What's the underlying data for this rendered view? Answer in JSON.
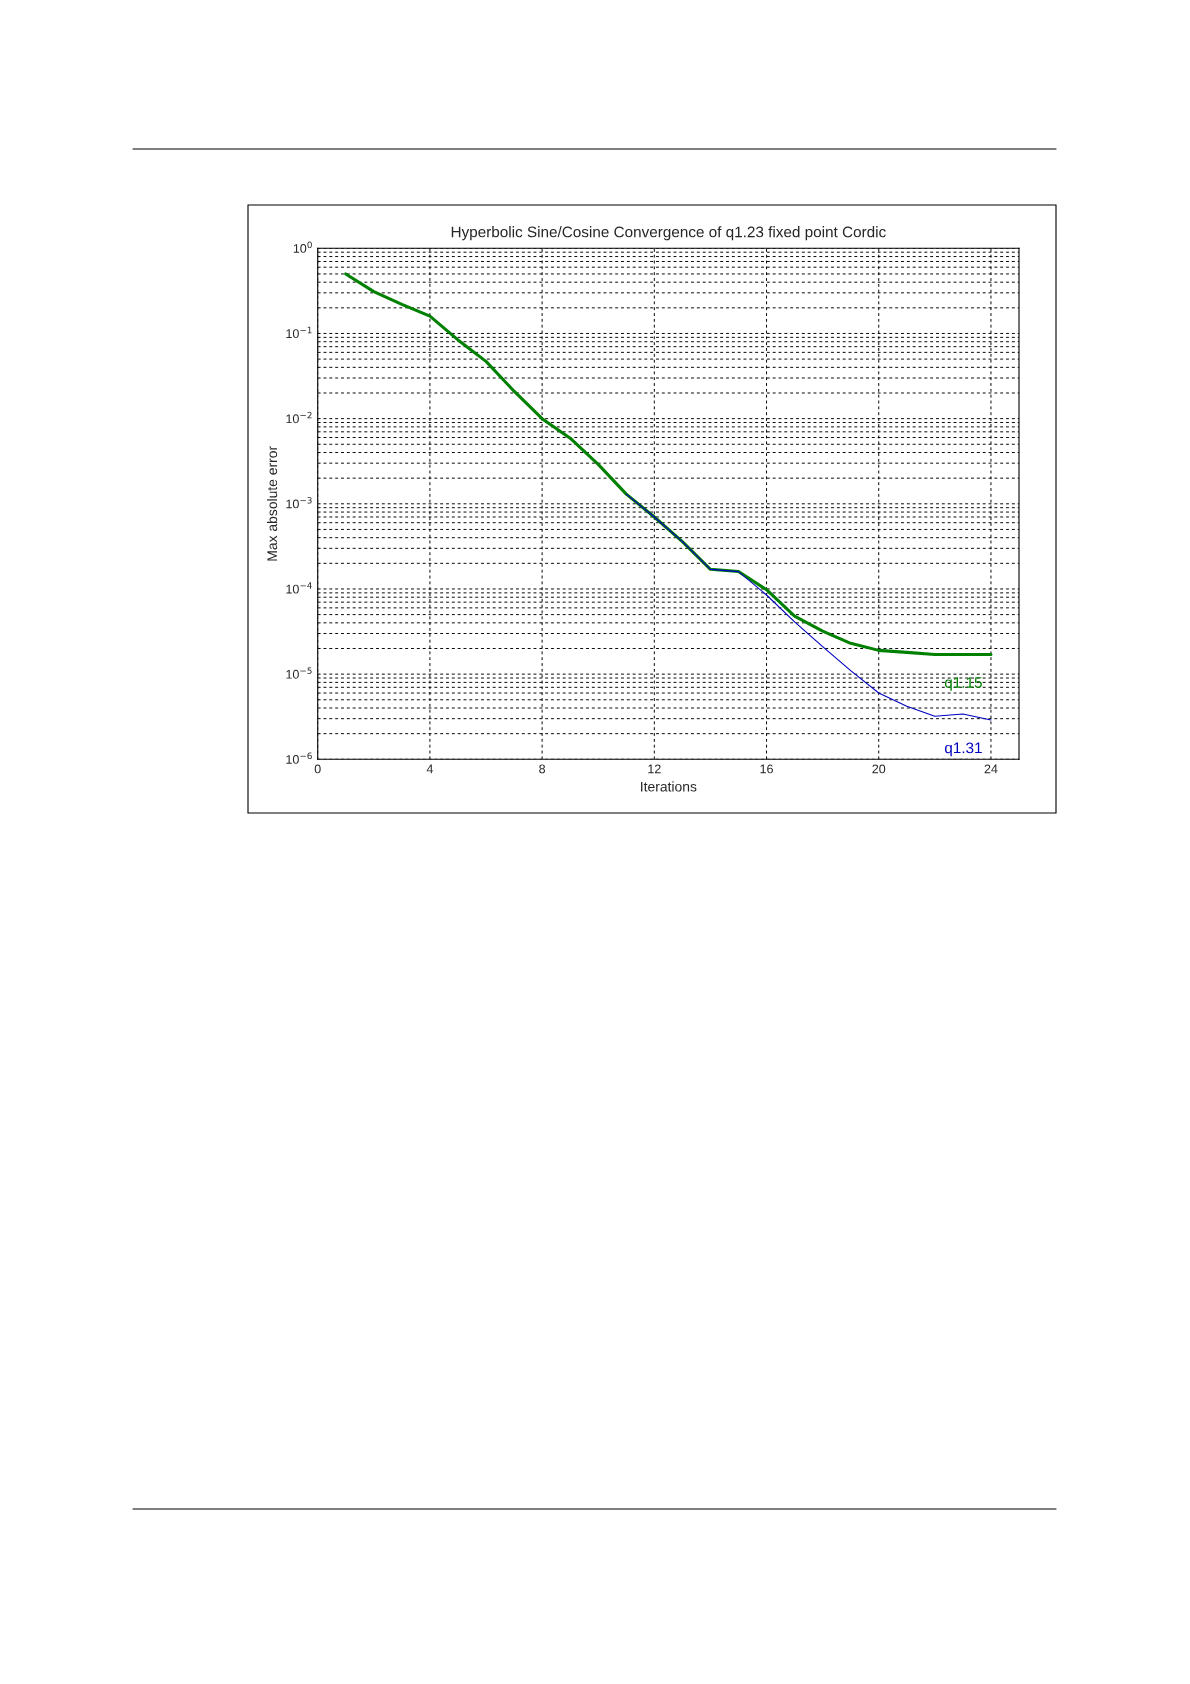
{
  "chart_data": {
    "type": "line",
    "title": "Hyperbolic Sine/Cosine Convergence of q1.23 fixed point Cordic",
    "xlabel": "Iterations",
    "ylabel": "Max absolute error",
    "x": [
      1,
      2,
      3,
      4,
      5,
      6,
      7,
      8,
      9,
      10,
      11,
      12,
      13,
      14,
      15,
      16,
      17,
      18,
      19,
      20,
      21,
      22,
      23,
      24
    ],
    "series": [
      {
        "name": "q1.15",
        "color": "#008000",
        "values": [
          0.5,
          0.31,
          0.22,
          0.16,
          0.084,
          0.047,
          0.021,
          0.01,
          0.0059,
          0.0029,
          0.0013,
          0.0007,
          0.00036,
          0.00017,
          0.00016,
          9.8e-05,
          4.8e-05,
          3.2e-05,
          2.3e-05,
          1.9e-05,
          1.8e-05,
          1.7e-05,
          1.7e-05,
          1.7e-05
        ]
      },
      {
        "name": "q1.31",
        "color": "#0000c0",
        "values": [
          null,
          null,
          null,
          null,
          null,
          null,
          null,
          null,
          null,
          null,
          0.0013,
          0.0007,
          0.00036,
          0.00017,
          0.00016,
          8.5e-05,
          4.1e-05,
          2.1e-05,
          1.1e-05,
          6e-06,
          4.2e-06,
          3.2e-06,
          3.4e-06,
          2.9e-06
        ]
      }
    ],
    "log": "y",
    "xlim": [
      0,
      25
    ],
    "xticks": [
      0,
      4,
      8,
      12,
      16,
      20,
      24
    ],
    "ylim": [
      1e-06,
      1
    ],
    "yticks": [
      {
        "value": 1e-06,
        "label": "10$^{−6}$"
      },
      {
        "value": 1e-05,
        "label": "10$^{−5}$"
      },
      {
        "value": 0.0001,
        "label": "10$^{−4}$"
      },
      {
        "value": 0.001,
        "label": "10$^{−3}$"
      },
      {
        "value": 0.01,
        "label": "10$^{−2}$"
      },
      {
        "value": 0.1,
        "label": "10$^{−1}$"
      },
      {
        "value": 1,
        "label": "10$^{0}$"
      }
    ],
    "grid": true,
    "line_style": "solid",
    "marker": "none"
  }
}
